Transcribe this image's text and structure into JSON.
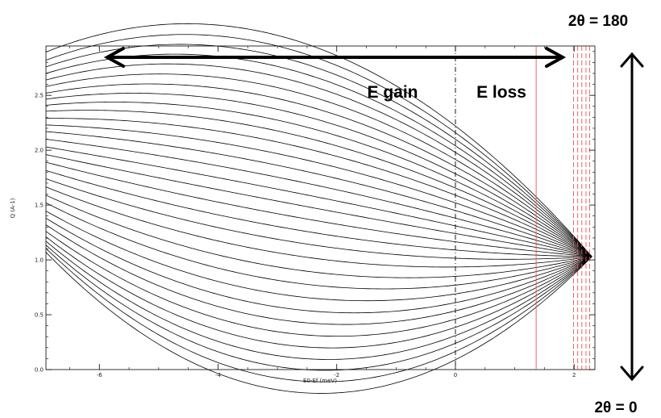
{
  "chart_data": {
    "type": "line",
    "title": "",
    "xlabel": "E0-Ef (meV)",
    "ylabel": "Q (A-1)",
    "xlim": [
      -6.9,
      2.35
    ],
    "ylim": [
      0.0,
      2.95
    ],
    "xticks": [
      -6,
      -4,
      -2,
      0,
      2
    ],
    "xtick_labels": [
      "-6",
      "-4",
      "-2",
      "0",
      "2"
    ],
    "yticks": [
      0.0,
      0.5,
      1.0,
      1.5,
      2.0,
      2.5
    ],
    "ytick_labels": [
      "0.0",
      "0.5",
      "1.0",
      "1.5",
      "2.0",
      "2.5"
    ],
    "grid": false,
    "legend": "none",
    "series_description_count": 31,
    "curve_family": {
      "convergence_point": [
        2.3,
        1.03
      ],
      "curves_at_x_min": [
        1.07,
        1.105,
        1.135,
        1.17,
        1.21,
        1.26,
        1.32,
        1.38,
        1.445,
        1.52,
        1.59,
        1.665,
        1.74,
        1.815,
        1.89,
        1.96,
        2.03,
        2.1,
        2.17,
        2.23,
        2.29,
        2.355,
        2.41,
        2.465,
        2.52,
        2.58,
        2.64,
        2.7,
        2.76,
        2.82,
        2.895
      ],
      "curves_at_x_zero": [
        0.09,
        0.165,
        0.24,
        0.31,
        0.385,
        0.46,
        0.535,
        0.61,
        0.69,
        0.77,
        0.85,
        0.935,
        1.015,
        1.09,
        1.165,
        1.24,
        1.31,
        1.38,
        1.45,
        1.52,
        1.59,
        1.655,
        1.72,
        1.785,
        1.85,
        1.915,
        1.98,
        2.04,
        2.1,
        2.16,
        2.22
      ],
      "color": "#000000"
    },
    "reference_lines": [
      {
        "x": 0.0,
        "style": "dash-dot",
        "color": "#000000"
      },
      {
        "x": 1.36,
        "style": "solid",
        "color": "#e8574f"
      },
      {
        "x": 1.99,
        "style": "dashed",
        "color": "#e8574f"
      },
      {
        "x": 2.06,
        "style": "dashed",
        "color": "#e8574f"
      },
      {
        "x": 2.13,
        "style": "dashed",
        "color": "#e8574f"
      },
      {
        "x": 2.2,
        "style": "dashed",
        "color": "#e8574f"
      },
      {
        "x": 2.26,
        "style": "dashed",
        "color": "#e8574f"
      }
    ],
    "annotations": {
      "gain_label": "E gain",
      "loss_label": "E loss",
      "angle_top": "2θ = 180",
      "angle_bottom": "2θ = 0"
    }
  }
}
